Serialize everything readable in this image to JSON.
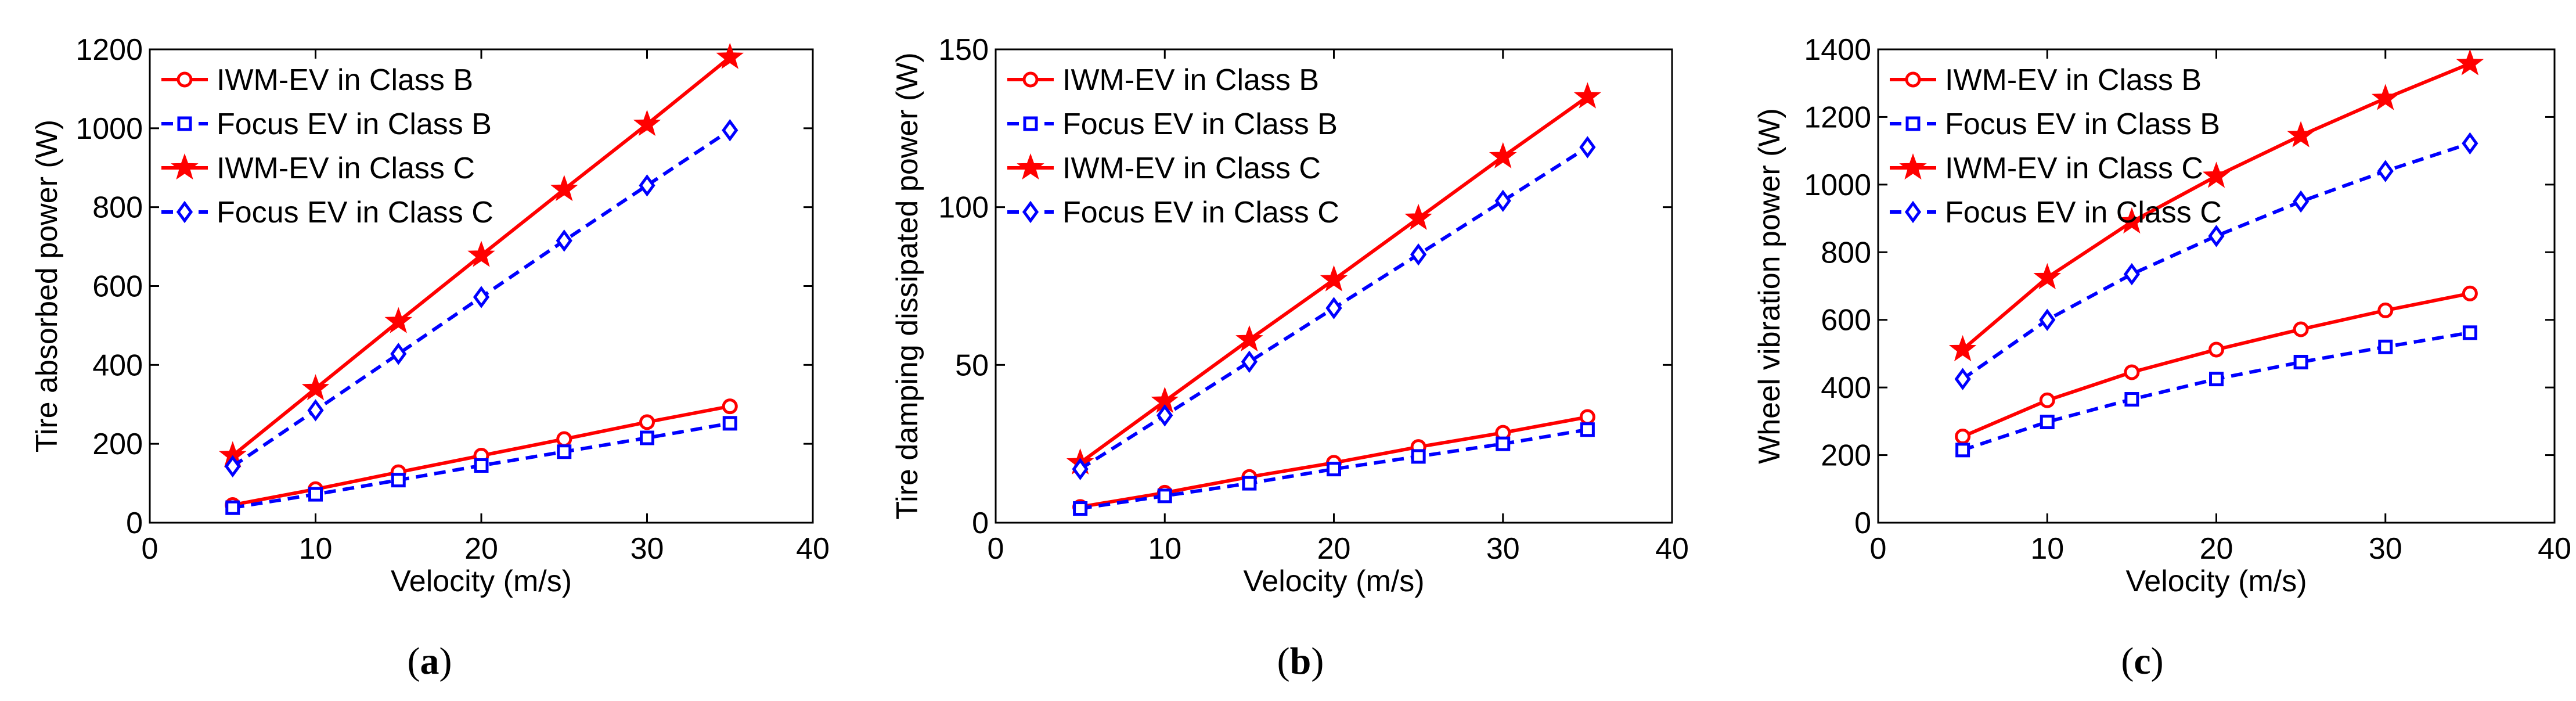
{
  "chart_data": [
    {
      "type": "line",
      "panel_label": "(a)",
      "xlabel": "Velocity (m/s)",
      "ylabel": "Tire absorbed power (W)",
      "xlim": [
        0,
        40
      ],
      "ylim": [
        0,
        1200
      ],
      "xticks": [
        0,
        10,
        20,
        30,
        40
      ],
      "yticks": [
        0,
        200,
        400,
        600,
        800,
        1000,
        1200
      ],
      "legend_position": "top-left",
      "x": [
        5,
        10,
        15,
        20,
        25,
        30,
        35
      ],
      "series": [
        {
          "name": "IWM-EV in Class B",
          "color": "#ff0000",
          "marker": "circle",
          "dash": "solid",
          "values": [
            45,
            85,
            128,
            170,
            212,
            255,
            295
          ]
        },
        {
          "name": "Focus EV in Class B",
          "color": "#0000ff",
          "marker": "square",
          "dash": "dashed",
          "values": [
            38,
            72,
            108,
            145,
            180,
            215,
            252
          ]
        },
        {
          "name": "IWM-EV in Class C",
          "color": "#ff0000",
          "marker": "star",
          "dash": "solid",
          "values": [
            170,
            340,
            510,
            678,
            845,
            1010,
            1180
          ]
        },
        {
          "name": "Focus EV in Class C",
          "color": "#0000ff",
          "marker": "diamond",
          "dash": "dashed",
          "values": [
            143,
            285,
            428,
            572,
            715,
            855,
            995
          ]
        }
      ]
    },
    {
      "type": "line",
      "panel_label": "(b)",
      "xlabel": "Velocity (m/s)",
      "ylabel": "Tire damping dissipated power (W)",
      "xlim": [
        0,
        40
      ],
      "ylim": [
        0,
        150
      ],
      "xticks": [
        0,
        10,
        20,
        30,
        40
      ],
      "yticks": [
        0,
        50,
        100,
        150
      ],
      "legend_position": "top-left",
      "x": [
        5,
        10,
        15,
        20,
        25,
        30,
        35
      ],
      "series": [
        {
          "name": "IWM-EV in Class B",
          "color": "#ff0000",
          "marker": "circle",
          "dash": "solid",
          "values": [
            5,
            9.5,
            14.5,
            19,
            24,
            28.5,
            33.5
          ]
        },
        {
          "name": "Focus EV in Class B",
          "color": "#0000ff",
          "marker": "square",
          "dash": "dashed",
          "values": [
            4.5,
            8.5,
            12.5,
            17,
            21,
            25,
            29.5
          ]
        },
        {
          "name": "IWM-EV in Class C",
          "color": "#ff0000",
          "marker": "star",
          "dash": "solid",
          "values": [
            19,
            38.5,
            58,
            77,
            96.5,
            116,
            135
          ]
        },
        {
          "name": "Focus EV in Class C",
          "color": "#0000ff",
          "marker": "diamond",
          "dash": "dashed",
          "values": [
            17,
            34,
            51,
            68,
            85,
            102,
            119
          ]
        }
      ]
    },
    {
      "type": "line",
      "panel_label": "(c)",
      "xlabel": "Velocity (m/s)",
      "ylabel": "Wheel vibration power (W)",
      "xlim": [
        0,
        40
      ],
      "ylim": [
        0,
        1400
      ],
      "xticks": [
        0,
        10,
        20,
        30,
        40
      ],
      "yticks": [
        0,
        200,
        400,
        600,
        800,
        1000,
        1200,
        1400
      ],
      "legend_position": "top-left",
      "x": [
        5,
        10,
        15,
        20,
        25,
        30,
        35
      ],
      "series": [
        {
          "name": "IWM-EV in Class B",
          "color": "#ff0000",
          "marker": "circle",
          "dash": "solid",
          "values": [
            255,
            362,
            445,
            512,
            572,
            628,
            678
          ]
        },
        {
          "name": "Focus EV in Class B",
          "color": "#0000ff",
          "marker": "square",
          "dash": "dashed",
          "values": [
            215,
            298,
            365,
            425,
            475,
            520,
            562
          ]
        },
        {
          "name": "IWM-EV in Class C",
          "color": "#ff0000",
          "marker": "star",
          "dash": "solid",
          "values": [
            512,
            725,
            890,
            1025,
            1145,
            1255,
            1358
          ]
        },
        {
          "name": "Focus EV in Class C",
          "color": "#0000ff",
          "marker": "diamond",
          "dash": "dashed",
          "values": [
            425,
            600,
            735,
            848,
            950,
            1040,
            1122
          ]
        }
      ]
    }
  ]
}
